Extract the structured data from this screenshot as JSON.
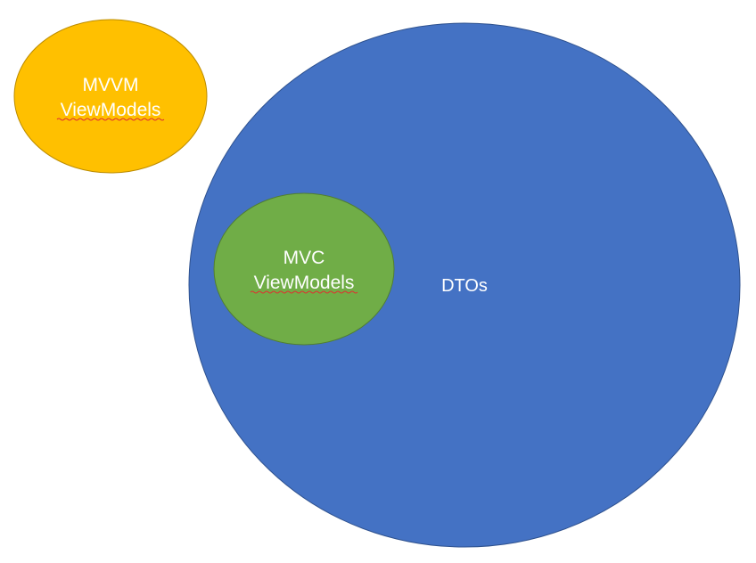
{
  "diagram": {
    "shapes": [
      {
        "id": "mvvm",
        "lines": [
          "MVVM",
          "ViewModels"
        ],
        "fill": "#FFC000",
        "stroke": "#BC8C00"
      },
      {
        "id": "dtos",
        "lines": [
          "DTOs"
        ],
        "fill": "#4472C4",
        "stroke": "#2F528F"
      },
      {
        "id": "mvc",
        "lines": [
          "MVC",
          "ViewModels"
        ],
        "fill": "#70AD47",
        "stroke": "#507E32"
      }
    ]
  }
}
